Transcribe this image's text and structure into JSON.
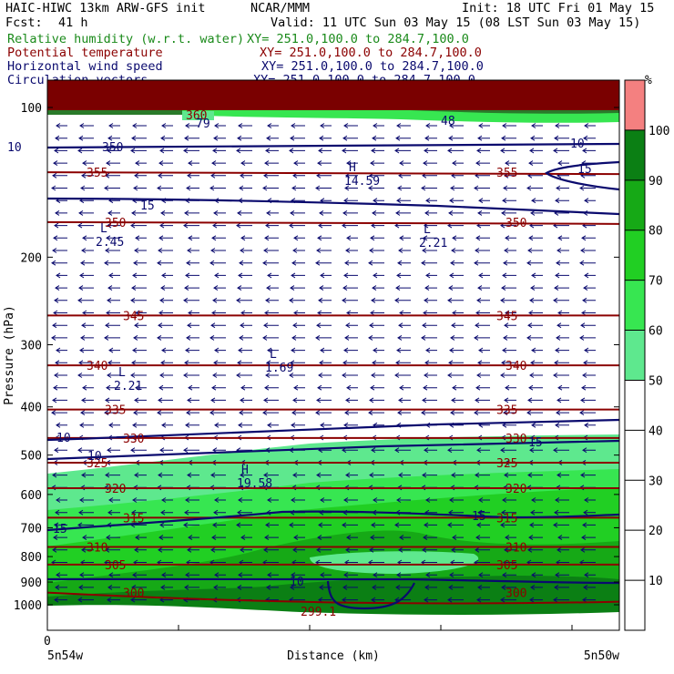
{
  "header": {
    "model_title": "HAIC-HIWC 13km ARW-GFS init",
    "center": "NCAR/MMM",
    "init_label": "Init: 18 UTC Fri 01 May 15",
    "fcst_label": "Fcst:",
    "fcst_value": "41 h",
    "valid_label": "Valid: 11 UTC Sun 03 May 15 (08 LST Sun 03 May 15)"
  },
  "legend": [
    {
      "label": "Relative humidity (w.r.t. water)",
      "xy": "XY= 251.0,100.0 to 284.7,100.0",
      "color": "#1a8a1a"
    },
    {
      "label": "Potential temperature",
      "xy": "XY= 251.0,100.0 to 284.7,100.0",
      "color": "#8b0000"
    },
    {
      "label": "Horizontal wind speed",
      "xy": "XY= 251.0,100.0 to 284.7,100.0",
      "color": "#0a0a6e"
    },
    {
      "label": "Circulation vectors",
      "xy": "XY= 251.0,100.0 to 284.7,100.0",
      "color": "#0a0a6e"
    }
  ],
  "chart_data": {
    "type": "cross-section",
    "xlabel": "Distance (km)",
    "ylabel": "Pressure (hPa)",
    "x_tick_origin": "0",
    "x_left_label": "5n54w",
    "x_right_label": "5n50w",
    "y_scale": "log",
    "ylim": [
      1050,
      80
    ],
    "y_ticks": [
      100,
      200,
      300,
      400,
      500,
      600,
      700,
      800,
      900,
      1000
    ],
    "colorbar": {
      "unit": "%",
      "ticks": [
        10,
        20,
        30,
        40,
        50,
        60,
        70,
        80,
        90,
        100
      ],
      "bands": [
        {
          "from": 50,
          "to": 60,
          "color": "#5ee88e"
        },
        {
          "from": 60,
          "to": 70,
          "color": "#37e651"
        },
        {
          "from": 70,
          "to": 80,
          "color": "#21cf23"
        },
        {
          "from": 80,
          "to": 90,
          "color": "#16a916"
        },
        {
          "from": 90,
          "to": 100,
          "color": "#0b7f14"
        },
        {
          "from": 100,
          "to": 110,
          "color": "#f48080"
        }
      ]
    },
    "theta_isentropes": [
      {
        "value": 355,
        "p": 135,
        "labels": [
          "355",
          "355"
        ]
      },
      {
        "value": 350,
        "p": 170,
        "labels": [
          "350",
          "350"
        ]
      },
      {
        "value": 345,
        "p": 262,
        "labels": [
          "345",
          "345"
        ]
      },
      {
        "value": 340,
        "p": 330,
        "labels": [
          "340",
          "340"
        ]
      },
      {
        "value": 335,
        "p": 405,
        "labels": [
          "335",
          "335"
        ]
      },
      {
        "value": 330,
        "p": 462,
        "labels": [
          "330",
          "330"
        ]
      },
      {
        "value": 325,
        "p": 518,
        "labels": [
          "325",
          "325"
        ]
      },
      {
        "value": 320,
        "p": 583,
        "labels": [
          "320",
          "320"
        ]
      },
      {
        "value": 315,
        "p": 668,
        "labels": [
          "315",
          "315"
        ]
      },
      {
        "value": 310,
        "p": 765,
        "labels": [
          "310",
          "310"
        ]
      },
      {
        "value": 305,
        "p": 830,
        "labels": [
          "305",
          "305"
        ]
      },
      {
        "value": 300,
        "p": 945,
        "labels": [
          "300",
          "300"
        ]
      }
    ],
    "top_theta_label": "360",
    "min_theta_label": "299.1",
    "wind_speed_labels": [
      "10",
      "350",
      "15",
      "10",
      "15",
      "10",
      "10",
      "15",
      "15",
      "15",
      "10",
      "48",
      "79"
    ],
    "extrema": [
      {
        "type": "H",
        "value": "14.59"
      },
      {
        "type": "L",
        "value": "2.45"
      },
      {
        "type": "L",
        "value": "2.21"
      },
      {
        "type": "L",
        "value": "1.69"
      },
      {
        "type": "L",
        "value": "2.21"
      },
      {
        "type": "H",
        "value": "19.58"
      }
    ],
    "wind_vectors": "westward (easterly) flow throughout",
    "grid": false
  }
}
